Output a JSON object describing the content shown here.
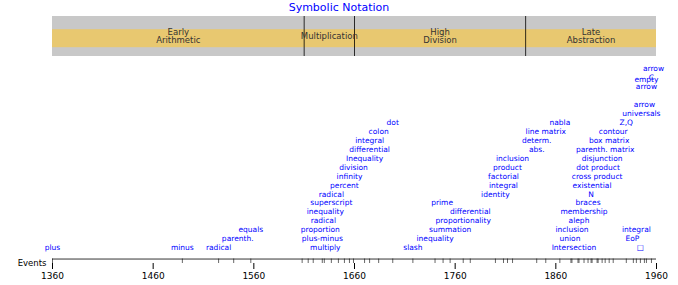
{
  "chart_data": {
    "type": "timeline",
    "title": "Symbolic Notation",
    "xlim": [
      1360,
      1960
    ],
    "xticks": [
      1360,
      1460,
      1560,
      1660,
      1760,
      1860,
      1960
    ],
    "ylim": [
      -0.5,
      22
    ],
    "tick_labels": "x",
    "color": "blue",
    "colors": [
      "#c8c8c8",
      "#e8c870"
    ],
    "annotations": [
      "Events"
    ],
    "periods": [
      {
        "label": "Early\nArithmetic",
        "xstart": 1360,
        "xend": 1610
      },
      {
        "label": "Multiplication",
        "xstart": 1610,
        "xend": 1660
      },
      {
        "label": "High\nDivision",
        "xstart": 1660,
        "xend": 1830
      },
      {
        "label": "Late\nAbstraction",
        "xstart": 1830,
        "xend": 1960
      }
    ],
    "period_dividers": [
      1610,
      1660,
      1830
    ],
    "events": [
      {
        "label": "plus",
        "x": 1360,
        "row": 0
      },
      {
        "label": "minus",
        "x": 1489,
        "row": 0
      },
      {
        "label": "radical",
        "x": 1525,
        "row": 0
      },
      {
        "label": "parenth.",
        "x": 1544,
        "row": 1
      },
      {
        "label": "equals",
        "x": 1557,
        "row": 2
      },
      {
        "label": "multiply",
        "x": 1631,
        "row": 0
      },
      {
        "label": "plus-minus",
        "x": 1628,
        "row": 1
      },
      {
        "label": "proportion",
        "x": 1626,
        "row": 2
      },
      {
        "label": "radical",
        "x": 1629,
        "row": 3
      },
      {
        "label": "inequality",
        "x": 1631,
        "row": 4
      },
      {
        "label": "superscript",
        "x": 1637,
        "row": 5
      },
      {
        "label": "radical",
        "x": 1637,
        "row": 6
      },
      {
        "label": "percent",
        "x": 1650,
        "row": 7
      },
      {
        "label": "infinity",
        "x": 1655,
        "row": 8
      },
      {
        "label": "division",
        "x": 1659,
        "row": 9
      },
      {
        "label": "Inequality",
        "x": 1670,
        "row": 10
      },
      {
        "label": "differential",
        "x": 1675,
        "row": 11
      },
      {
        "label": "integral",
        "x": 1675,
        "row": 12
      },
      {
        "label": "colon",
        "x": 1684,
        "row": 13
      },
      {
        "label": "dot",
        "x": 1698,
        "row": 14
      },
      {
        "label": "slash",
        "x": 1718,
        "row": 0
      },
      {
        "label": "inequality",
        "x": 1740,
        "row": 1
      },
      {
        "label": "summation",
        "x": 1755,
        "row": 2
      },
      {
        "label": "proportionality",
        "x": 1768,
        "row": 3
      },
      {
        "label": "differential",
        "x": 1775,
        "row": 4
      },
      {
        "label": "prime",
        "x": 1747,
        "row": 5
      },
      {
        "label": "identity",
        "x": 1800,
        "row": 6
      },
      {
        "label": "integral",
        "x": 1808,
        "row": 7
      },
      {
        "label": "factorial",
        "x": 1808,
        "row": 8
      },
      {
        "label": "product",
        "x": 1812,
        "row": 9
      },
      {
        "label": "inclusion",
        "x": 1817,
        "row": 10
      },
      {
        "label": "abs.",
        "x": 1841,
        "row": 11
      },
      {
        "label": "determ.",
        "x": 1841,
        "row": 12
      },
      {
        "label": "line matrix",
        "x": 1850,
        "row": 13
      },
      {
        "label": "nabla",
        "x": 1864,
        "row": 14
      },
      {
        "label": "Intersection",
        "x": 1878,
        "row": 0
      },
      {
        "label": "union",
        "x": 1874,
        "row": 1
      },
      {
        "label": "inclusion",
        "x": 1876,
        "row": 2
      },
      {
        "label": "aleph",
        "x": 1883,
        "row": 3
      },
      {
        "label": "membership",
        "x": 1888,
        "row": 4
      },
      {
        "label": "braces",
        "x": 1892,
        "row": 5
      },
      {
        "label": "N",
        "x": 1895,
        "row": 6
      },
      {
        "label": "existential",
        "x": 1896,
        "row": 7
      },
      {
        "label": "cross product",
        "x": 1901,
        "row": 8
      },
      {
        "label": "dot product",
        "x": 1902,
        "row": 9
      },
      {
        "label": "disjunction",
        "x": 1906,
        "row": 10
      },
      {
        "label": "parenth. matrix",
        "x": 1909,
        "row": 11
      },
      {
        "label": "box matrix",
        "x": 1913,
        "row": 12
      },
      {
        "label": "contour",
        "x": 1917,
        "row": 13
      },
      {
        "label": "Z,Q",
        "x": 1930,
        "row": 14
      },
      {
        "label": "EoP",
        "x": 1936,
        "row": 1
      },
      {
        "label": "integral",
        "x": 1940,
        "row": 2
      },
      {
        "label": "□",
        "x": 1944,
        "row": 0
      },
      {
        "label": "universals",
        "x": 1945,
        "row": 15
      },
      {
        "label": "arrow",
        "x": 1948,
        "row": 16
      },
      {
        "label": "empty\narrow",
        "x": 1950,
        "row": 18
      },
      {
        "label": "C",
        "x": 1955,
        "row": 19
      },
      {
        "label": "arrow",
        "x": 1957,
        "row": 20
      }
    ],
    "tick_marks": [
      1360,
      1489,
      1525,
      1540,
      1557,
      1608,
      1614,
      1619,
      1628,
      1630,
      1637,
      1644,
      1650,
      1655,
      1659,
      1670,
      1675,
      1684,
      1698,
      1718,
      1740,
      1748,
      1755,
      1768,
      1775,
      1800,
      1808,
      1812,
      1817,
      1841,
      1850,
      1864,
      1875,
      1876,
      1882,
      1883,
      1888,
      1892,
      1895,
      1896,
      1901,
      1902,
      1906,
      1909,
      1913,
      1917,
      1930,
      1937,
      1940,
      1944,
      1948,
      1950,
      1955
    ]
  }
}
